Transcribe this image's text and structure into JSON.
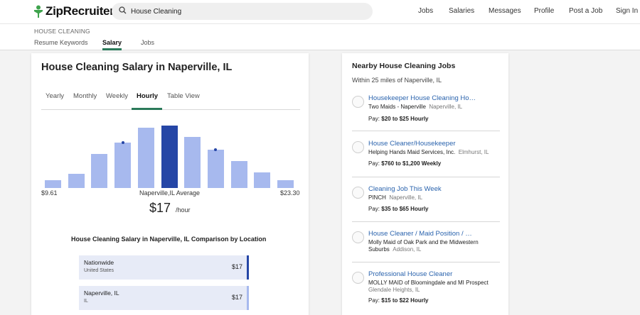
{
  "header": {
    "brand": "ZipRecruiter",
    "search_value": "House Cleaning",
    "nav": [
      "Jobs",
      "Salaries",
      "Messages",
      "Profile",
      "Post a Job",
      "Sign In"
    ]
  },
  "subnav": {
    "crumb": "HOUSE CLEANING",
    "tabs": [
      "Resume Keywords",
      "Salary",
      "Jobs"
    ],
    "active_tab": "Salary"
  },
  "salary": {
    "title": "House Cleaning Salary in Naperville, IL",
    "period_tabs": [
      "Yearly",
      "Monthly",
      "Weekly",
      "Hourly",
      "Table View"
    ],
    "active_period": "Hourly",
    "range_low": "$9.61",
    "range_label": "Naperville,IL Average",
    "range_high": "$23.30",
    "pay": "$17",
    "pay_unit": "/hour",
    "comparison_title": "House Cleaning Salary in Naperville, IL Comparison by Location",
    "comparison": [
      {
        "name": "Nationwide",
        "sub": "United States",
        "value": "$17"
      },
      {
        "name": "Naperville, IL",
        "sub": "IL",
        "value": "$17"
      }
    ]
  },
  "chart_data": {
    "type": "bar",
    "values": [
      11,
      20,
      48,
      64,
      85,
      88,
      72,
      54,
      38,
      22,
      11
    ],
    "highlight_index": 5,
    "markers": [
      3,
      7
    ],
    "ylim": [
      0,
      100
    ]
  },
  "jobs": {
    "title": "Nearby House Cleaning Jobs",
    "subtitle": "Within 25 miles of Naperville, IL",
    "items": [
      {
        "title": "Housekeeper House Cleaning Ho…",
        "company": "Two Maids - Naperville",
        "location": "Naperville, IL",
        "pay_label": "Pay:",
        "pay": "$20 to $25 Hourly"
      },
      {
        "title": "House Cleaner/Housekeeper",
        "company": "Helping Hands Maid Services, Inc.",
        "location": "Elmhurst, IL",
        "pay_label": "Pay:",
        "pay": "$760 to $1,200 Weekly"
      },
      {
        "title": "Cleaning Job This Week",
        "company": "PINCH",
        "location": "Naperville, IL",
        "pay_label": "Pay:",
        "pay": "$35 to $65 Hourly"
      },
      {
        "title": "House Cleaner / Maid Position / …",
        "company": "Molly Maid of Oak Park and the Midwestern Suburbs",
        "location": "Addison, IL",
        "pay_label": "",
        "pay": ""
      },
      {
        "title": "Professional House Cleaner",
        "company": "MOLLY MAID of Bloomingdale and MI Prospect",
        "location": "Glendale Heights, IL",
        "pay_label": "Pay:",
        "pay": "$15 to $22 Hourly"
      }
    ]
  },
  "colors": {
    "accent": "#2b7a5a",
    "bar": "#a7b9ee",
    "bar_highlight": "#2546a6",
    "link": "#2a63ad"
  }
}
